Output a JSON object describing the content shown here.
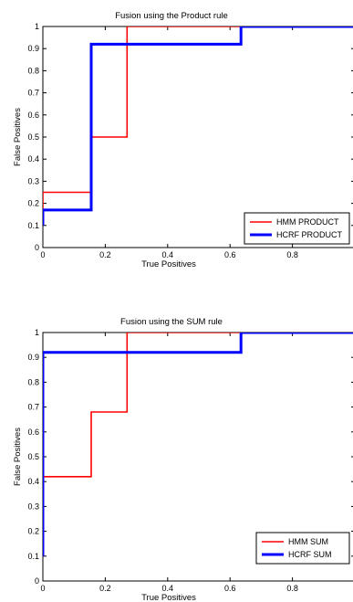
{
  "chart_data": [
    {
      "type": "line",
      "step": true,
      "title": "Fusion using the Product rule",
      "xlabel": "True Positives",
      "ylabel": "False Positives",
      "xlim": [
        0,
        1
      ],
      "ylim": [
        0,
        1
      ],
      "xticks": [
        0,
        0.2,
        0.4,
        0.6,
        0.8
      ],
      "xtick_labels": [
        "0",
        "0.2",
        "0.4",
        "0.6",
        "0.8"
      ],
      "yticks": [
        0,
        0.1,
        0.2,
        0.3,
        0.4,
        0.5,
        0.6,
        0.7,
        0.8,
        0.9,
        1
      ],
      "ytick_labels": [
        "0",
        "0.1",
        "0.2",
        "0.3",
        "0.4",
        "0.5",
        "0.6",
        "0.7",
        "0.8",
        "0.9",
        "1"
      ],
      "grid": false,
      "legend_position": "bottom-right",
      "series": [
        {
          "name": "HMM PRODUCT",
          "color": "#ff0000",
          "x": [
            0,
            0,
            0.155,
            0.155,
            0.27,
            0.27,
            0.635,
            0.635,
            1
          ],
          "y": [
            0.1,
            0.25,
            0.25,
            0.5,
            0.5,
            1.0,
            1.0,
            1.0,
            1.0
          ]
        },
        {
          "name": "HCRF PRODUCT",
          "color": "#0000ff",
          "x": [
            0,
            0,
            0.155,
            0.155,
            0.635,
            0.635,
            1
          ],
          "y": [
            0.1,
            0.17,
            0.17,
            0.92,
            0.92,
            1.0,
            1.0
          ]
        }
      ]
    },
    {
      "type": "line",
      "step": true,
      "title": "Fusion using the SUM rule",
      "xlabel": "True Positives",
      "ylabel": "False Positives",
      "xlim": [
        0,
        1
      ],
      "ylim": [
        0,
        1
      ],
      "xticks": [
        0,
        0.2,
        0.4,
        0.6,
        0.8
      ],
      "xtick_labels": [
        "0",
        "0.2",
        "0.4",
        "0.6",
        "0.8"
      ],
      "yticks": [
        0,
        0.1,
        0.2,
        0.3,
        0.4,
        0.5,
        0.6,
        0.7,
        0.8,
        0.9,
        1
      ],
      "ytick_labels": [
        "0",
        "0.1",
        "0.2",
        "0.3",
        "0.4",
        "0.5",
        "0.6",
        "0.7",
        "0.8",
        "0.9",
        "1"
      ],
      "grid": false,
      "legend_position": "bottom-right",
      "series": [
        {
          "name": "HMM SUM",
          "color": "#ff0000",
          "x": [
            0,
            0,
            0.155,
            0.155,
            0.27,
            0.27,
            1
          ],
          "y": [
            0.1,
            0.42,
            0.42,
            0.68,
            0.68,
            1.0,
            1.0
          ]
        },
        {
          "name": "HCRF SUM",
          "color": "#0000ff",
          "x": [
            0,
            0,
            0.635,
            0.635,
            1
          ],
          "y": [
            0.1,
            0.92,
            0.92,
            1.0,
            1.0
          ]
        }
      ]
    }
  ]
}
